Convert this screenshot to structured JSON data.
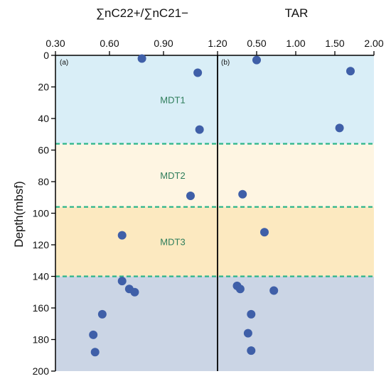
{
  "colors": {
    "zones": [
      "#d9eef7",
      "#fef5e2",
      "#fce9c0",
      "#cbd5e5"
    ],
    "zone_line": "#2bb58a",
    "zone_label": "#2e7d5b",
    "marker": "#3f5fa8"
  },
  "chart_data": [
    {
      "type": "scatter",
      "panel_label": "(a)",
      "xlabel": "∑nC22+/∑nC21−",
      "x_ticks": [
        "0.30",
        "0.60",
        "0.90",
        "1.20"
      ],
      "xlim": [
        0.3,
        1.2
      ],
      "points": [
        {
          "x": 0.78,
          "y": 2
        },
        {
          "x": 1.09,
          "y": 11
        },
        {
          "x": 1.1,
          "y": 47
        },
        {
          "x": 1.05,
          "y": 89
        },
        {
          "x": 0.67,
          "y": 114
        },
        {
          "x": 0.67,
          "y": 143
        },
        {
          "x": 0.71,
          "y": 148
        },
        {
          "x": 0.74,
          "y": 150
        },
        {
          "x": 0.56,
          "y": 164
        },
        {
          "x": 0.51,
          "y": 177
        },
        {
          "x": 0.52,
          "y": 188
        }
      ]
    },
    {
      "type": "scatter",
      "panel_label": "(b)",
      "xlabel": "TAR",
      "x_ticks": [
        "0.50",
        "1.00",
        "1.50",
        "2.00"
      ],
      "xlim": [
        0.0,
        2.0
      ],
      "points": [
        {
          "x": 0.5,
          "y": 3
        },
        {
          "x": 1.7,
          "y": 10
        },
        {
          "x": 1.56,
          "y": 46
        },
        {
          "x": 0.32,
          "y": 88
        },
        {
          "x": 0.6,
          "y": 112
        },
        {
          "x": 0.25,
          "y": 146
        },
        {
          "x": 0.29,
          "y": 148
        },
        {
          "x": 0.72,
          "y": 149
        },
        {
          "x": 0.43,
          "y": 164
        },
        {
          "x": 0.39,
          "y": 176
        },
        {
          "x": 0.43,
          "y": 187
        }
      ]
    }
  ],
  "y_axis": {
    "label": "Depth(mbsf)",
    "ylim": [
      0,
      200
    ],
    "ticks": [
      "0",
      "20",
      "40",
      "60",
      "80",
      "100",
      "120",
      "140",
      "160",
      "180",
      "200"
    ],
    "inverted": true
  },
  "zones": [
    {
      "label": "MDT1",
      "from": 0,
      "to": 56
    },
    {
      "label": "MDT2",
      "from": 56,
      "to": 96
    },
    {
      "label": "MDT3",
      "from": 96,
      "to": 140
    },
    {
      "label": "",
      "from": 140,
      "to": 200
    }
  ]
}
